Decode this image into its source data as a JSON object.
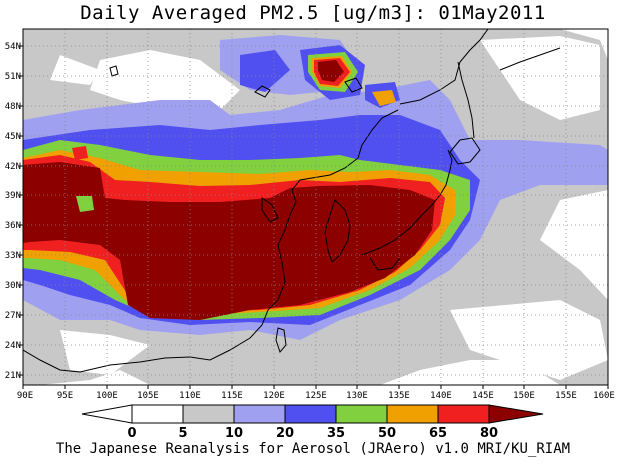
{
  "title": "Daily Averaged PM2.5 [ug/m3]: 01May2011",
  "footer": "The Japanese Reanalysis for Aerosol (JRAero) v1.0 MRI/KU_RIAM",
  "map": {
    "region": "East Asia",
    "lon_range": [
      90,
      160
    ],
    "lat_range": [
      19.5,
      55.5
    ],
    "lon_ticks": [
      "90E",
      "95E",
      "100E",
      "105E",
      "110E",
      "115E",
      "120E",
      "125E",
      "130E",
      "135E",
      "140E",
      "145E",
      "150E",
      "155E",
      "160E"
    ],
    "lat_ticks": [
      "21N",
      "24N",
      "27N",
      "30N",
      "33N",
      "36N",
      "39N",
      "42N",
      "45N",
      "48N",
      "51N",
      "54N"
    ]
  },
  "colorbar": {
    "levels": [
      "0",
      "5",
      "10",
      "20",
      "35",
      "50",
      "65",
      "80"
    ],
    "colors": [
      "#ffffff",
      "#c8c8c8",
      "#a0a0f0",
      "#5050f0",
      "#80d040",
      "#f0a000",
      "#f02020",
      "#8c0000"
    ]
  }
}
